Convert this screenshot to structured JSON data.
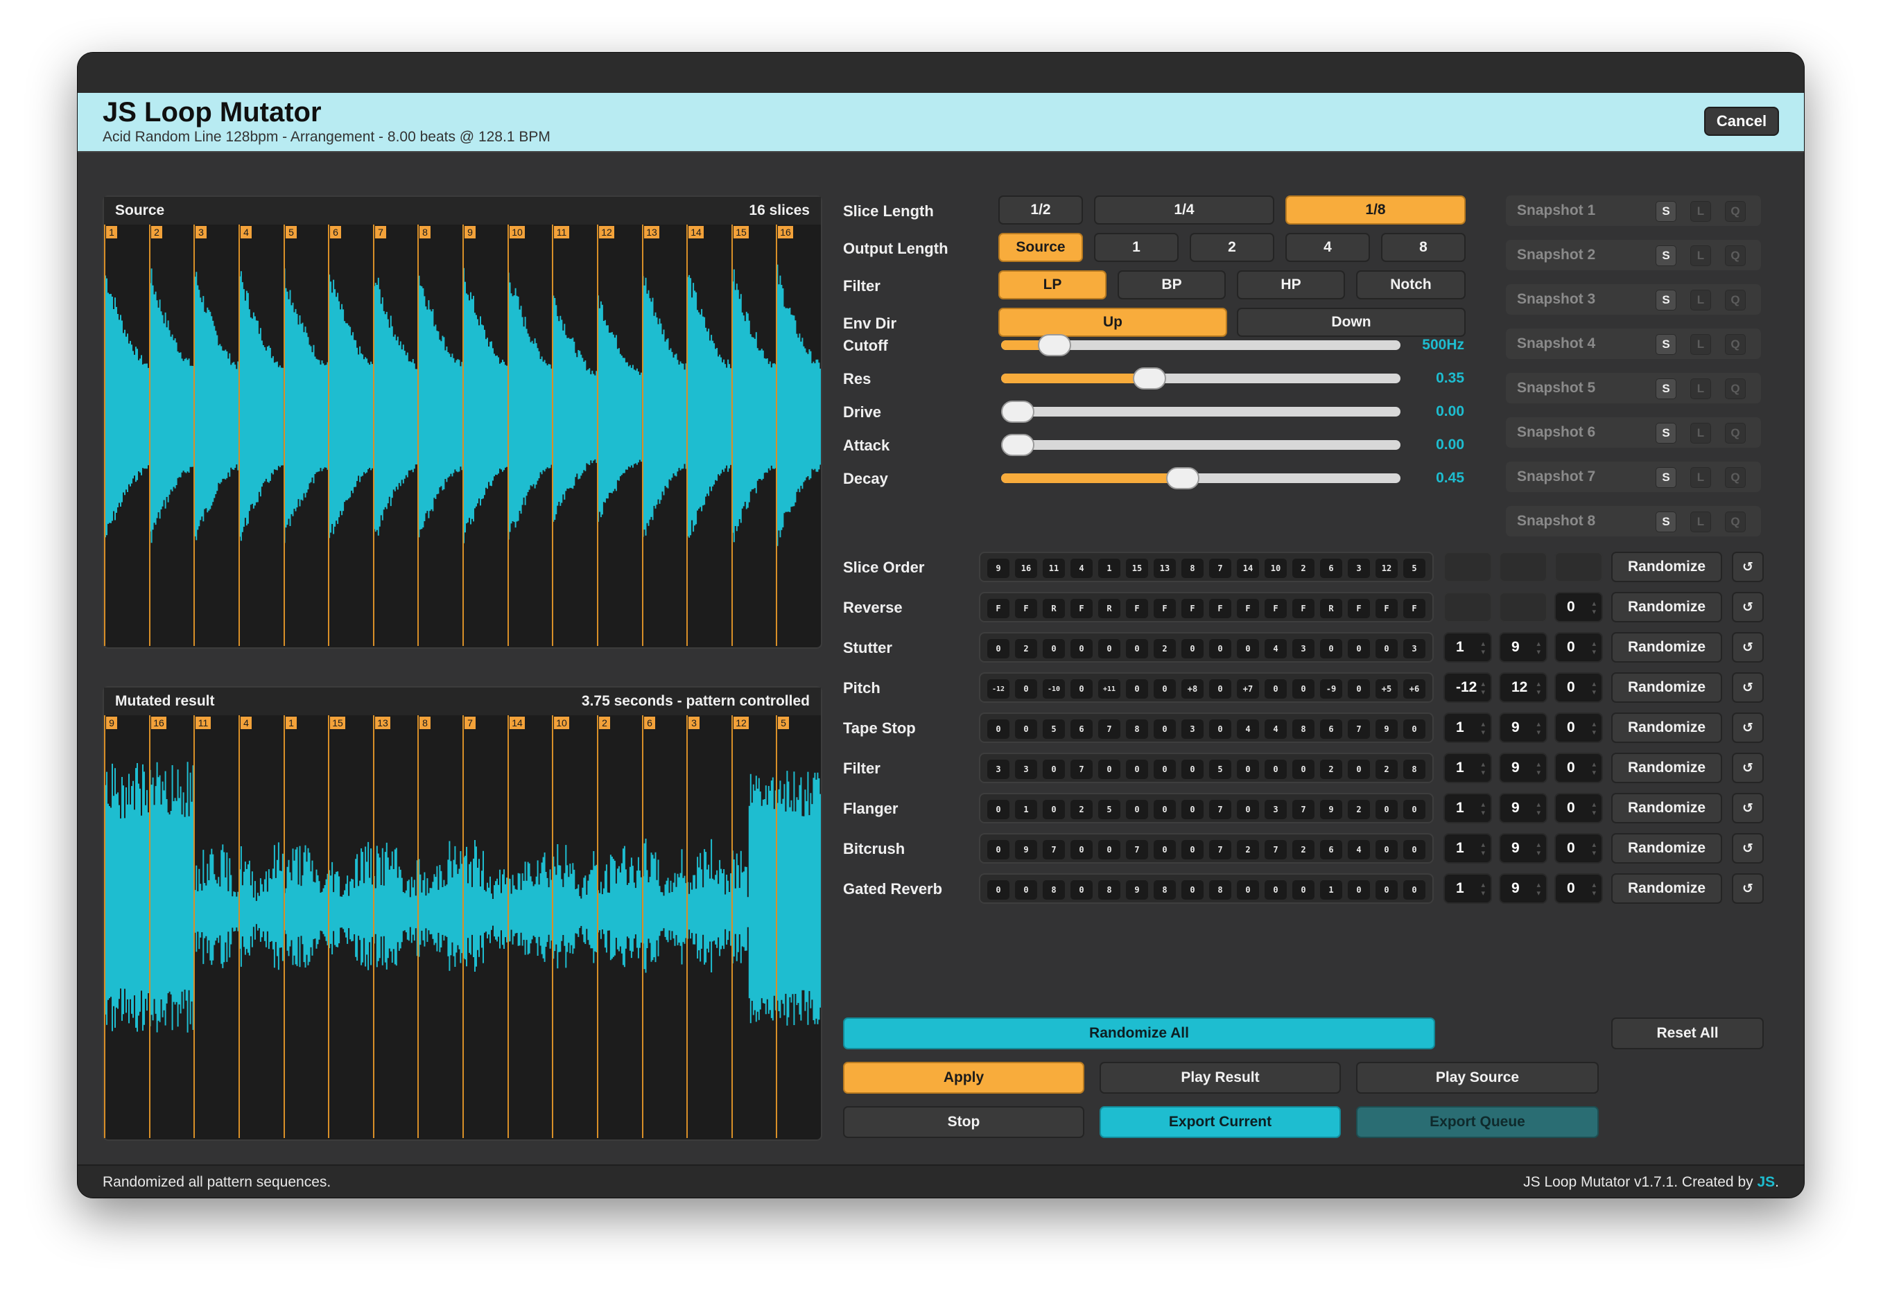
{
  "app": {
    "title": "JS Loop Mutator",
    "subtitle": "Acid Random Line 128bpm - Arrangement - 8.00 beats @ 128.1 BPM",
    "cancel_label": "Cancel"
  },
  "colors": {
    "accent": "#f8ac3c",
    "wave": "#1ebdd0",
    "bg": "#333334",
    "header": "#b8ebf2"
  },
  "source_panel": {
    "title": "Source",
    "info": "16 slices",
    "markers": [
      "1",
      "2",
      "3",
      "4",
      "5",
      "6",
      "7",
      "8",
      "9",
      "10",
      "11",
      "12",
      "13",
      "14",
      "15",
      "16"
    ]
  },
  "result_panel": {
    "title": "Mutated result",
    "info": "3.75 seconds - pattern controlled",
    "markers": [
      "9",
      "16",
      "11",
      "4",
      "1",
      "15",
      "13",
      "8",
      "7",
      "14",
      "10",
      "2",
      "6",
      "3",
      "12",
      "5"
    ]
  },
  "slice_length": {
    "label": "Slice Length",
    "options": [
      "1/2",
      "1/4",
      "1/8"
    ],
    "selected": "1/8"
  },
  "output_length": {
    "label": "Output Length",
    "options": [
      "Source",
      "1",
      "2",
      "4",
      "8"
    ],
    "selected": "Source"
  },
  "filter_type": {
    "label": "Filter",
    "options": [
      "LP",
      "BP",
      "HP",
      "Notch"
    ],
    "selected": "LP"
  },
  "env_dir": {
    "label": "Env Dir",
    "options": [
      "Up",
      "Down"
    ],
    "selected": "Up"
  },
  "sliders": [
    {
      "label": "Cutoff",
      "display": "500Hz",
      "level": 0.1
    },
    {
      "label": "Res",
      "display": "0.35",
      "level": 0.36
    },
    {
      "label": "Drive",
      "display": "0.00",
      "level": 0.0
    },
    {
      "label": "Attack",
      "display": "0.00",
      "level": 0.0
    },
    {
      "label": "Decay",
      "display": "0.45",
      "level": 0.45
    }
  ],
  "snapshots": [
    {
      "label": "Snapshot 1"
    },
    {
      "label": "Snapshot 2"
    },
    {
      "label": "Snapshot 3"
    },
    {
      "label": "Snapshot 4"
    },
    {
      "label": "Snapshot 5"
    },
    {
      "label": "Snapshot 6"
    },
    {
      "label": "Snapshot 7"
    },
    {
      "label": "Snapshot 8"
    }
  ],
  "snapshot_buttons": {
    "save": "S",
    "load": "L",
    "queue": "Q"
  },
  "patterns": [
    {
      "label": "Slice Order",
      "steps": [
        "9",
        "16",
        "11",
        "4",
        "1",
        "15",
        "13",
        "8",
        "7",
        "14",
        "10",
        "2",
        "6",
        "3",
        "12",
        "5"
      ],
      "min": "",
      "max": "",
      "offset": ""
    },
    {
      "label": "Reverse",
      "steps": [
        "F",
        "F",
        "R",
        "F",
        "R",
        "F",
        "F",
        "F",
        "F",
        "F",
        "F",
        "F",
        "R",
        "F",
        "F",
        "F"
      ],
      "min": "",
      "max": "",
      "offset": "0"
    },
    {
      "label": "Stutter",
      "steps": [
        "0",
        "2",
        "0",
        "0",
        "0",
        "0",
        "2",
        "0",
        "0",
        "0",
        "4",
        "3",
        "0",
        "0",
        "0",
        "3"
      ],
      "min": "1",
      "max": "9",
      "offset": "0"
    },
    {
      "label": "Pitch",
      "steps": [
        "-12",
        "0",
        "-10",
        "0",
        "+11",
        "0",
        "0",
        "+8",
        "0",
        "+7",
        "0",
        "0",
        "-9",
        "0",
        "+5",
        "+6"
      ],
      "min": "-12",
      "max": "12",
      "offset": "0"
    },
    {
      "label": "Tape Stop",
      "steps": [
        "0",
        "0",
        "5",
        "6",
        "7",
        "8",
        "0",
        "3",
        "0",
        "4",
        "4",
        "8",
        "6",
        "7",
        "9",
        "0"
      ],
      "min": "1",
      "max": "9",
      "offset": "0"
    },
    {
      "label": "Filter",
      "steps": [
        "3",
        "3",
        "0",
        "7",
        "0",
        "0",
        "0",
        "0",
        "5",
        "0",
        "0",
        "0",
        "2",
        "0",
        "2",
        "8"
      ],
      "min": "1",
      "max": "9",
      "offset": "0"
    },
    {
      "label": "Flanger",
      "steps": [
        "0",
        "1",
        "0",
        "2",
        "5",
        "0",
        "0",
        "0",
        "7",
        "0",
        "3",
        "7",
        "9",
        "2",
        "0",
        "0"
      ],
      "min": "1",
      "max": "9",
      "offset": "0"
    },
    {
      "label": "Bitcrush",
      "steps": [
        "0",
        "9",
        "7",
        "0",
        "0",
        "7",
        "0",
        "0",
        "7",
        "2",
        "7",
        "2",
        "6",
        "4",
        "0",
        "0"
      ],
      "min": "1",
      "max": "9",
      "offset": "0"
    },
    {
      "label": "Gated Reverb",
      "steps": [
        "0",
        "0",
        "8",
        "0",
        "8",
        "9",
        "8",
        "0",
        "8",
        "0",
        "0",
        "0",
        "1",
        "0",
        "0",
        "0"
      ],
      "min": "1",
      "max": "9",
      "offset": "0"
    }
  ],
  "pattern_buttons": {
    "randomize": "Randomize",
    "reset_glyph": "↺"
  },
  "actions": {
    "randomize_all": "Randomize All",
    "reset_all": "Reset All",
    "apply": "Apply",
    "play_result": "Play Result",
    "play_source": "Play Source",
    "stop": "Stop",
    "export_current": "Export Current",
    "export_queue": "Export Queue"
  },
  "status": {
    "message": "Randomized all pattern sequences.",
    "version_prefix": "JS Loop Mutator v1.7.1. Created by ",
    "author": "JS",
    "version_suffix": "."
  }
}
